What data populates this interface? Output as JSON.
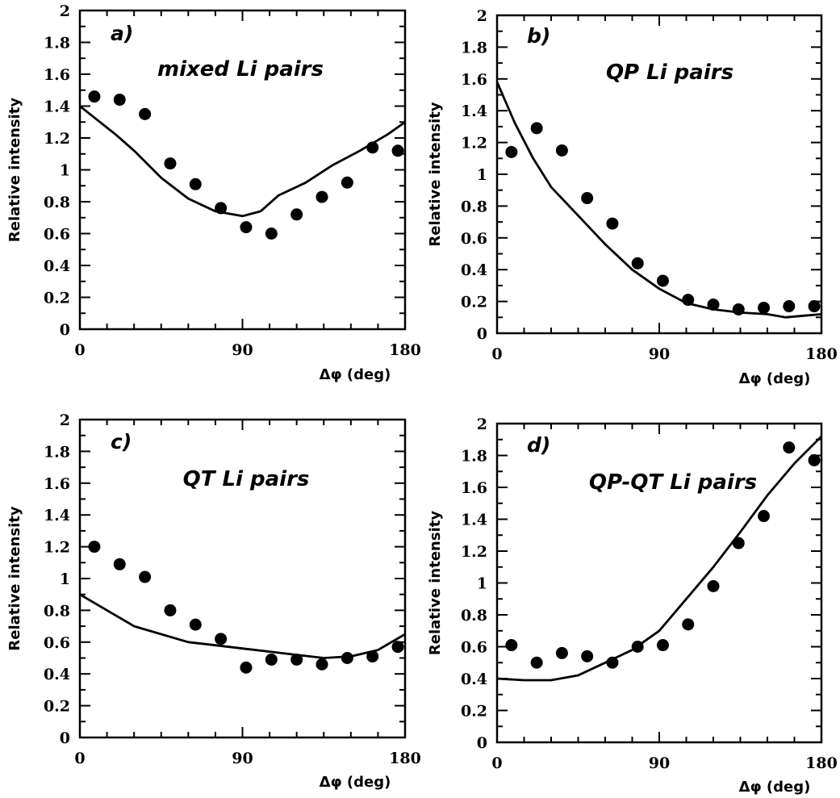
{
  "chart_data": [
    {
      "type": "scatter",
      "label": "a)",
      "title": "mixed Li pairs",
      "xlabel": "Δφ (deg)",
      "ylabel": "Relative intensity",
      "xlim": [
        0,
        180
      ],
      "ylim": [
        0,
        2
      ],
      "xticks": [
        "0",
        "90",
        "180"
      ],
      "yticks": [
        "0",
        "0.2",
        "0.4",
        "0.6",
        "0.8",
        "1",
        "1.2",
        "1.4",
        "1.6",
        "1.8",
        "2"
      ],
      "points": {
        "x": [
          8,
          22,
          36,
          50,
          64,
          78,
          92,
          106,
          120,
          134,
          148,
          162,
          176
        ],
        "y": [
          1.46,
          1.44,
          1.35,
          1.04,
          0.91,
          0.76,
          0.64,
          0.6,
          0.72,
          0.83,
          0.92,
          1.14,
          1.12
        ]
      },
      "curve": {
        "x": [
          0,
          10,
          20,
          30,
          45,
          60,
          75,
          90,
          100,
          110,
          125,
          140,
          155,
          170,
          180
        ],
        "y": [
          1.4,
          1.31,
          1.22,
          1.12,
          0.95,
          0.82,
          0.74,
          0.71,
          0.74,
          0.84,
          0.92,
          1.03,
          1.12,
          1.22,
          1.3
        ]
      }
    },
    {
      "type": "scatter",
      "label": "b)",
      "title": "QP Li pairs",
      "xlabel": "Δφ (deg)",
      "ylabel": "Relative intensity",
      "xlim": [
        0,
        180
      ],
      "ylim": [
        0,
        2
      ],
      "xticks": [
        "0",
        "90",
        "180"
      ],
      "yticks": [
        "0",
        "0.2",
        "0.4",
        "0.6",
        "0.8",
        "1",
        "1.2",
        "1.4",
        "1.6",
        "1.8",
        "2"
      ],
      "points": {
        "x": [
          8,
          22,
          36,
          50,
          64,
          78,
          92,
          106,
          120,
          134,
          148,
          162,
          176
        ],
        "y": [
          1.14,
          1.29,
          1.15,
          0.85,
          0.69,
          0.44,
          0.33,
          0.21,
          0.18,
          0.15,
          0.16,
          0.17,
          0.17
        ]
      },
      "curve": {
        "x": [
          0,
          10,
          20,
          30,
          45,
          60,
          75,
          90,
          105,
          120,
          135,
          150,
          160,
          170,
          180
        ],
        "y": [
          1.58,
          1.32,
          1.1,
          0.92,
          0.74,
          0.56,
          0.4,
          0.28,
          0.19,
          0.15,
          0.13,
          0.12,
          0.1,
          0.11,
          0.12
        ]
      }
    },
    {
      "type": "scatter",
      "label": "c)",
      "title": "QT Li pairs",
      "xlabel": "Δφ (deg)",
      "ylabel": "Relative intensity",
      "xlim": [
        0,
        180
      ],
      "ylim": [
        0,
        2
      ],
      "xticks": [
        "0",
        "90",
        "180"
      ],
      "yticks": [
        "0",
        "0.2",
        "0.4",
        "0.6",
        "0.8",
        "1",
        "1.2",
        "1.4",
        "1.6",
        "1.8",
        "2"
      ],
      "points": {
        "x": [
          8,
          22,
          36,
          50,
          64,
          78,
          92,
          106,
          120,
          134,
          148,
          162,
          176
        ],
        "y": [
          1.2,
          1.09,
          1.01,
          0.8,
          0.71,
          0.62,
          0.44,
          0.49,
          0.49,
          0.46,
          0.5,
          0.51,
          0.57
        ]
      },
      "curve": {
        "x": [
          0,
          15,
          30,
          45,
          60,
          75,
          90,
          105,
          120,
          135,
          150,
          165,
          180
        ],
        "y": [
          0.9,
          0.8,
          0.7,
          0.65,
          0.6,
          0.58,
          0.56,
          0.54,
          0.52,
          0.5,
          0.51,
          0.55,
          0.65
        ]
      }
    },
    {
      "type": "scatter",
      "label": "d)",
      "title": "QP-QT Li pairs",
      "xlabel": "Δφ (deg)",
      "ylabel": "Relative intensity",
      "xlim": [
        0,
        180
      ],
      "ylim": [
        0,
        2
      ],
      "xticks": [
        "0",
        "90",
        "180"
      ],
      "yticks": [
        "0",
        "0.2",
        "0.4",
        "0.6",
        "0.8",
        "1",
        "1.2",
        "1.4",
        "1.6",
        "1.8",
        "2"
      ],
      "points": {
        "x": [
          8,
          22,
          36,
          50,
          64,
          78,
          92,
          106,
          120,
          134,
          148,
          162,
          176
        ],
        "y": [
          0.61,
          0.5,
          0.56,
          0.54,
          0.5,
          0.6,
          0.61,
          0.74,
          0.98,
          1.25,
          1.42,
          1.85,
          1.77
        ]
      },
      "curve": {
        "x": [
          0,
          15,
          30,
          45,
          60,
          75,
          90,
          105,
          120,
          135,
          150,
          165,
          180
        ],
        "y": [
          0.4,
          0.39,
          0.39,
          0.42,
          0.5,
          0.58,
          0.7,
          0.9,
          1.1,
          1.32,
          1.55,
          1.75,
          1.92
        ]
      }
    }
  ]
}
